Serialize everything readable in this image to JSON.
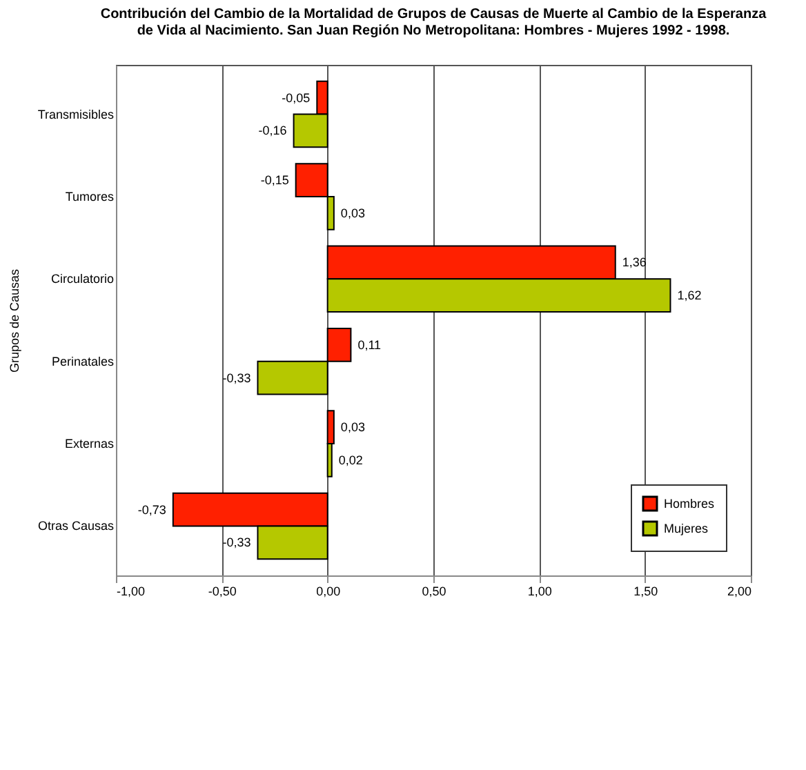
{
  "chart_data": {
    "type": "bar",
    "orientation": "horizontal",
    "title": [
      "Contribución del Cambio de la Mortalidad de Grupos de Causas de Muerte al Cambio de la Esperanza",
      "de Vida al  Nacimiento. San Juan Región No Metropolitana: Hombres - Mujeres   1992  - 1998."
    ],
    "ylabel": "Grupos de Causas",
    "categories": [
      "Transmisibles",
      "Tumores",
      "Circulatorio",
      "Perinatales",
      "Externas",
      "Otras Causas"
    ],
    "series": [
      {
        "name": "Hombres",
        "color": "#ff2000",
        "values": [
          -0.05,
          -0.15,
          1.36,
          0.11,
          0.03,
          -0.73
        ],
        "value_labels": [
          "-0,05",
          "-0,15",
          "1,36",
          "0,11",
          "0,03",
          "-0,73"
        ]
      },
      {
        "name": "Mujeres",
        "color": "#b5c800",
        "values": [
          -0.16,
          0.03,
          1.62,
          -0.33,
          0.02,
          -0.33
        ],
        "value_labels": [
          "-0,16",
          "0,03",
          "1,62",
          "-0,33",
          "0,02",
          "-0,33"
        ]
      }
    ],
    "xlim": [
      -1,
      2
    ],
    "xticks": [
      {
        "value": -1,
        "label": "-1,00"
      },
      {
        "value": -0.5,
        "label": "-0,50"
      },
      {
        "value": 0,
        "label": "0,00"
      },
      {
        "value": 0.5,
        "label": "0,50"
      },
      {
        "value": 1,
        "label": "1,00"
      },
      {
        "value": 1.5,
        "label": "1,50"
      },
      {
        "value": 2,
        "label": "2,00"
      }
    ],
    "grid": "x",
    "legend": "bottom right"
  }
}
